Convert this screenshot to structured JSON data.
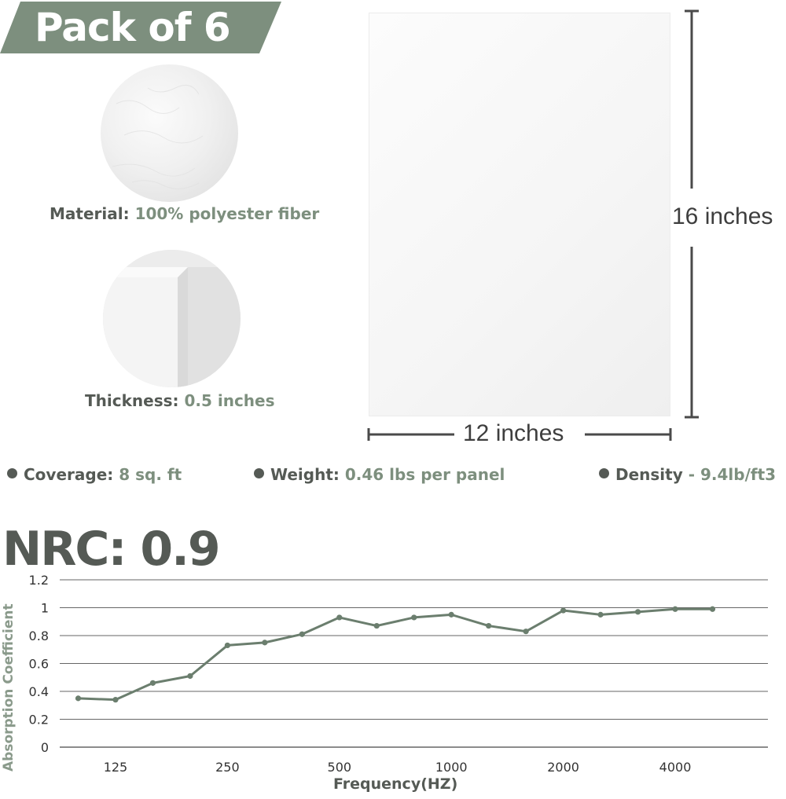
{
  "banner": {
    "text": "Pack of 6",
    "color": "#7d8f7e"
  },
  "material": {
    "key": "Material: ",
    "value": "100% polyester fiber"
  },
  "thickness": {
    "key": "Thickness: ",
    "value": "0.5 inches"
  },
  "panel": {
    "height_label": "16 inches",
    "width_label": "12 inches"
  },
  "specs": {
    "coverage": {
      "key": "Coverage: ",
      "value": "8 sq. ft"
    },
    "weight": {
      "key": "Weight: ",
      "value": "0.46 lbs per panel"
    },
    "density": {
      "key": "Density",
      "value": " - 9.4lb/ft3"
    }
  },
  "nrc": "NRC: 0.9",
  "colors": {
    "text": "#555a55",
    "accent": "#7d8f7e",
    "line": "#6b7e6e"
  },
  "chart_data": {
    "type": "line",
    "title": "",
    "xlabel": "Frequency(HZ)",
    "ylabel": "Absorption Coefficient",
    "ylim": [
      0,
      1.2
    ],
    "yticks": [
      "0",
      "0.2",
      "0.4",
      "0.6",
      "0.8",
      "1",
      "1.2"
    ],
    "xtick_labels": [
      "125",
      "250",
      "500",
      "1000",
      "2000",
      "4000"
    ],
    "grid": true,
    "series": [
      {
        "values": [
          0.35,
          0.34,
          0.46,
          0.51,
          0.73,
          0.75,
          0.81,
          0.93,
          0.87,
          0.93,
          0.95,
          0.87,
          0.83,
          0.98,
          0.95,
          0.97,
          0.99,
          0.99
        ]
      }
    ]
  }
}
